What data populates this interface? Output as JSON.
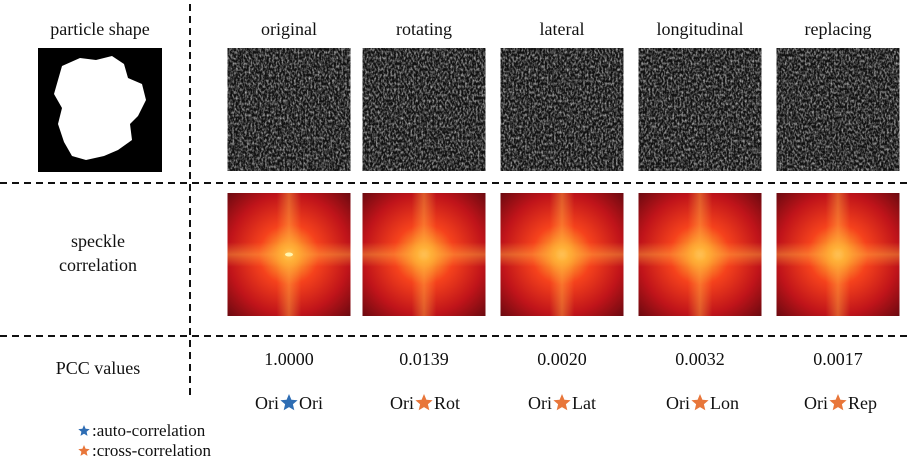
{
  "header": {
    "row_label": "particle shape",
    "columns": [
      "original",
      "rotating",
      "lateral",
      "longitudinal",
      "replacing"
    ]
  },
  "speckle_row": {
    "label": [
      "speckle",
      "correlation"
    ]
  },
  "pcc_row": {
    "label": "PCC values",
    "values": [
      "1.0000",
      "0.0139",
      "0.0020",
      "0.0032",
      "0.0017"
    ],
    "pairs": [
      {
        "left": "Ori",
        "right": "Ori",
        "star_color": "#2e6db4"
      },
      {
        "left": "Ori",
        "right": "Rot",
        "star_color": "#e8763a"
      },
      {
        "left": "Ori",
        "right": "Lat",
        "star_color": "#e8763a"
      },
      {
        "left": "Ori",
        "right": "Lon",
        "star_color": "#e8763a"
      },
      {
        "left": "Ori",
        "right": "Rep",
        "star_color": "#e8763a"
      }
    ]
  },
  "legend": [
    {
      "label": ":auto-correlation",
      "color": "#2e6db4"
    },
    {
      "label": ":cross-correlation",
      "color": "#e8763a"
    }
  ]
}
